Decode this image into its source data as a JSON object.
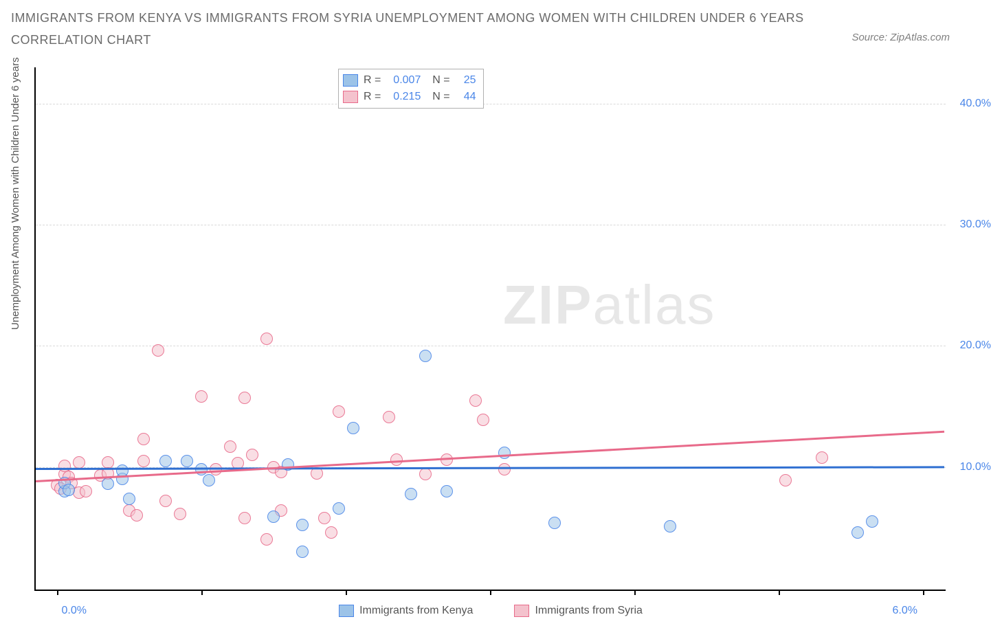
{
  "title_line1": "IMMIGRANTS FROM KENYA VS IMMIGRANTS FROM SYRIA UNEMPLOYMENT AMONG WOMEN WITH CHILDREN UNDER 6 YEARS",
  "title_line2": "CORRELATION CHART",
  "source_label": "Source: ZipAtlas.com",
  "yaxis_label": "Unemployment Among Women with Children Under 6 years",
  "watermark_text_bold": "ZIP",
  "watermark_text_rest": "atlas",
  "chart": {
    "type": "scatter",
    "background_color": "#ffffff",
    "grid_color": "#d9d9d9",
    "axis_color": "#000000",
    "tick_label_color": "#4a86e8",
    "xlim": [
      -0.15,
      6.15
    ],
    "ylim": [
      0,
      43
    ],
    "x_ticks": [
      0,
      1,
      2,
      3,
      4,
      5,
      6
    ],
    "x_tick_labels": {
      "0": "0.0%",
      "6": "6.0%"
    },
    "y_ticks": [
      10,
      20,
      30,
      40
    ],
    "y_tick_labels": [
      "10.0%",
      "20.0%",
      "30.0%",
      "40.0%"
    ],
    "marker_radius": 9,
    "marker_border_width": 1.5,
    "marker_fill_opacity": 0.25,
    "trend_line_width": 3,
    "series": [
      {
        "name": "Immigrants from Kenya",
        "color_fill": "#9cc3e8",
        "color_border": "#4a86e8",
        "trend_color": "#2f6fd1",
        "R": "0.007",
        "N": "25",
        "trend": {
          "y_at_xmin": 9.9,
          "y_at_xmax": 10.05
        },
        "points": [
          [
            0.05,
            8.0
          ],
          [
            0.05,
            8.7
          ],
          [
            0.08,
            8.1
          ],
          [
            0.35,
            8.6
          ],
          [
            0.45,
            9.0
          ],
          [
            0.45,
            9.7
          ],
          [
            0.5,
            7.4
          ],
          [
            0.75,
            10.5
          ],
          [
            0.9,
            10.5
          ],
          [
            1.0,
            9.8
          ],
          [
            1.05,
            8.9
          ],
          [
            1.5,
            5.9
          ],
          [
            1.6,
            10.2
          ],
          [
            1.7,
            5.2
          ],
          [
            1.7,
            3.0
          ],
          [
            1.95,
            6.6
          ],
          [
            2.05,
            13.2
          ],
          [
            2.45,
            7.8
          ],
          [
            2.55,
            19.2
          ],
          [
            2.7,
            8.0
          ],
          [
            3.1,
            11.2
          ],
          [
            3.45,
            5.4
          ],
          [
            4.25,
            5.1
          ],
          [
            5.55,
            4.6
          ],
          [
            5.65,
            5.5
          ]
        ]
      },
      {
        "name": "Immigrants from Syria",
        "color_fill": "#f4c2cd",
        "color_border": "#e86a8a",
        "trend_color": "#e86a8a",
        "R": "0.215",
        "N": "44",
        "trend": {
          "y_at_xmin": 8.9,
          "y_at_xmax": 13.0
        },
        "points": [
          [
            0.0,
            8.5
          ],
          [
            0.02,
            8.2
          ],
          [
            0.05,
            9.4
          ],
          [
            0.05,
            10.1
          ],
          [
            0.08,
            9.2
          ],
          [
            0.1,
            8.7
          ],
          [
            0.15,
            10.4
          ],
          [
            0.15,
            7.9
          ],
          [
            0.3,
            9.3
          ],
          [
            0.35,
            10.4
          ],
          [
            0.35,
            9.5
          ],
          [
            0.5,
            6.4
          ],
          [
            0.55,
            6.0
          ],
          [
            0.6,
            10.5
          ],
          [
            0.6,
            12.3
          ],
          [
            0.7,
            19.6
          ],
          [
            0.75,
            7.2
          ],
          [
            0.85,
            6.1
          ],
          [
            1.0,
            15.8
          ],
          [
            1.1,
            9.8
          ],
          [
            1.2,
            11.7
          ],
          [
            1.25,
            10.3
          ],
          [
            1.3,
            5.8
          ],
          [
            1.3,
            15.7
          ],
          [
            1.35,
            11.0
          ],
          [
            1.45,
            20.6
          ],
          [
            1.45,
            4.0
          ],
          [
            1.5,
            10.0
          ],
          [
            1.55,
            9.6
          ],
          [
            1.55,
            6.4
          ],
          [
            1.8,
            9.5
          ],
          [
            1.85,
            5.8
          ],
          [
            1.9,
            4.6
          ],
          [
            1.95,
            14.6
          ],
          [
            2.3,
            14.1
          ],
          [
            2.35,
            10.6
          ],
          [
            2.55,
            9.4
          ],
          [
            2.7,
            10.6
          ],
          [
            2.9,
            15.5
          ],
          [
            2.95,
            13.9
          ],
          [
            3.1,
            9.8
          ],
          [
            5.05,
            8.9
          ],
          [
            5.3,
            10.8
          ],
          [
            0.2,
            8.0
          ]
        ]
      }
    ]
  },
  "legend": {
    "kenya_label": "Immigrants from Kenya",
    "syria_label": "Immigrants from Syria"
  }
}
